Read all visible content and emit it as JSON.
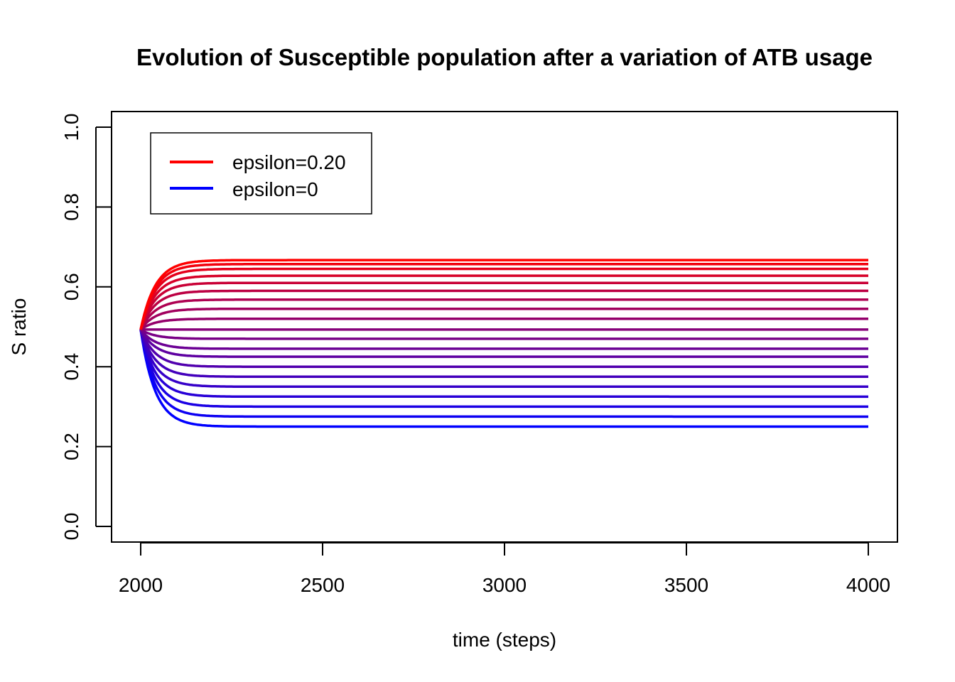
{
  "chart_data": {
    "type": "line",
    "title": "Evolution of Susceptible population after a variation of  ATB usage",
    "xlabel": "time (steps)",
    "ylabel": "S ratio",
    "xlim": [
      2000,
      4000
    ],
    "ylim": [
      0.0,
      1.0
    ],
    "x_ticks": [
      2000,
      2500,
      3000,
      3500,
      4000
    ],
    "y_ticks": [
      "0.0",
      "0.2",
      "0.4",
      "0.6",
      "0.8",
      "1.0"
    ],
    "grid": false,
    "legend": {
      "position": "top-left",
      "entries": [
        {
          "label": "epsilon=0.20",
          "color": "#ff0000"
        },
        {
          "label": "epsilon=0",
          "color": "#0000ff"
        }
      ]
    },
    "color_gradient": {
      "from": "#0000ff",
      "to": "#ff0000"
    },
    "series_start": {
      "x": 2000,
      "y": 0.493
    },
    "series_final_values": [
      0.25,
      0.275,
      0.3,
      0.325,
      0.35,
      0.375,
      0.4,
      0.425,
      0.445,
      0.47,
      0.493,
      0.52,
      0.545,
      0.568,
      0.59,
      0.61,
      0.628,
      0.645,
      0.657,
      0.667
    ],
    "approach_rate_per_step": 0.025
  }
}
